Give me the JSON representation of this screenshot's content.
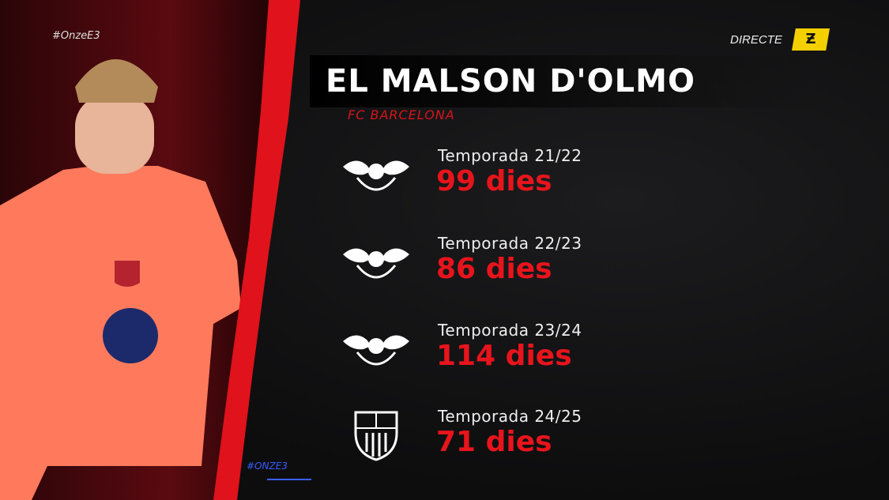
{
  "overlay": {
    "hashtag": "#OnzeE3",
    "scribble": "#ONZE3",
    "live_label": "DIRECTE",
    "channel_logo": "E3",
    "logo_color": "#f5d000"
  },
  "title": "EL MALSON D'OLMO",
  "subtitle": "FC BARCELONA",
  "accent_color": "#e8141c",
  "seasons": [
    {
      "club_icon": "rb-leipzig-crest",
      "season": "Temporada 21/22",
      "days": "99 dies"
    },
    {
      "club_icon": "rb-leipzig-crest",
      "season": "Temporada 22/23",
      "days": "86 dies"
    },
    {
      "club_icon": "rb-leipzig-crest",
      "season": "Temporada 23/24",
      "days": "114 dies"
    },
    {
      "club_icon": "fc-barcelona-crest",
      "season": "Temporada 24/25",
      "days": "71 dies"
    }
  ]
}
